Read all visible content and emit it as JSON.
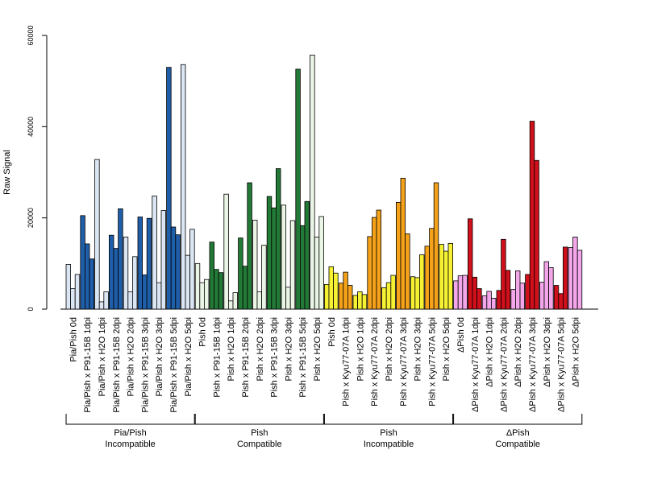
{
  "chart_data": {
    "type": "bar",
    "ylabel": "Raw Signal",
    "ylim": [
      0,
      60000
    ],
    "yticks": [
      0,
      20000,
      40000,
      60000
    ],
    "groups": [
      {
        "line1": "Pia/Pish",
        "line2": "Incompatible",
        "colors": {
          "light": "#dbe6f4",
          "dark": "#1f5ea8"
        },
        "categories": [
          {
            "label": "Pia/Pish 0d",
            "shade": "light",
            "values": [
              9800,
              4500,
              7600
            ]
          },
          {
            "label": "Pia/Pish x P91-15B 1dpi",
            "shade": "dark",
            "values": [
              20500,
              14300,
              11000
            ]
          },
          {
            "label": "Pia/Pish x H2O 1dpi",
            "shade": "light",
            "values": [
              32800,
              1600,
              3800
            ]
          },
          {
            "label": "Pia/Pish x P91-15B 2dpi",
            "shade": "dark",
            "values": [
              16200,
              13300,
              22000
            ]
          },
          {
            "label": "Pia/Pish x H2O 2dpi",
            "shade": "light",
            "values": [
              15800,
              3800,
              11500
            ]
          },
          {
            "label": "Pia/Pish x P91-15B 3dpi",
            "shade": "dark",
            "values": [
              20200,
              7500,
              19900
            ]
          },
          {
            "label": "Pia/Pish x H2O 3dpi",
            "shade": "light",
            "values": [
              24800,
              5800,
              21600
            ]
          },
          {
            "label": "Pia/Pish x P91-15B 5dpi",
            "shade": "dark",
            "values": [
              53000,
              18000,
              16300
            ]
          },
          {
            "label": "Pia/Pish x H2O 5dpi",
            "shade": "light",
            "values": [
              53600,
              11800,
              17500
            ]
          }
        ]
      },
      {
        "line1": "Pish",
        "line2": "Compatible",
        "colors": {
          "light": "#eaf5e6",
          "dark": "#237a37"
        },
        "categories": [
          {
            "label": "Pish 0d",
            "shade": "light",
            "values": [
              10000,
              5800,
              6500
            ]
          },
          {
            "label": "Pish x P91-15B 1dpi",
            "shade": "dark",
            "values": [
              14700,
              8700,
              8000
            ]
          },
          {
            "label": "Pish x H2O 1dpi",
            "shade": "light",
            "values": [
              25200,
              1800,
              3600
            ]
          },
          {
            "label": "Pish x P91-15B 2dpi",
            "shade": "dark",
            "values": [
              15600,
              9400,
              27700
            ]
          },
          {
            "label": "Pish x H2O 2dpi",
            "shade": "light",
            "values": [
              19500,
              3800,
              14000
            ]
          },
          {
            "label": "Pish x P91-15B 3dpi",
            "shade": "dark",
            "values": [
              24700,
              22200,
              30800
            ]
          },
          {
            "label": "Pish x H2O 3dpi",
            "shade": "light",
            "values": [
              22800,
              4800,
              19400
            ]
          },
          {
            "label": "Pish x P91-15B 5dpi",
            "shade": "dark",
            "values": [
              52600,
              18300,
              23600
            ]
          },
          {
            "label": "Pish x H2O 5dpi",
            "shade": "light",
            "values": [
              55700,
              15800,
              20300
            ]
          }
        ]
      },
      {
        "line1": "Pish",
        "line2": "Incompatible",
        "colors": {
          "light": "#f6f133",
          "dark": "#f5a21b"
        },
        "categories": [
          {
            "label": "Pish 0d",
            "shade": "light",
            "values": [
              5400,
              9300,
              7900
            ]
          },
          {
            "label": "Pish x Kyu77-07A 1dpi",
            "shade": "dark",
            "values": [
              5700,
              8100,
              5200
            ]
          },
          {
            "label": "Pish x H2O 1dpi",
            "shade": "light",
            "values": [
              3000,
              3800,
              3200
            ]
          },
          {
            "label": "Pish x Kyu77-07A 2dpi",
            "shade": "dark",
            "values": [
              15900,
              20100,
              21700
            ]
          },
          {
            "label": "Pish x H2O 2dpi",
            "shade": "light",
            "values": [
              4700,
              5800,
              7400
            ]
          },
          {
            "label": "Pish x Kyu77-07A 3dpi",
            "shade": "dark",
            "values": [
              23400,
              28700,
              16500
            ]
          },
          {
            "label": "Pish x H2O 3dpi",
            "shade": "light",
            "values": [
              7100,
              6900,
              11900
            ]
          },
          {
            "label": "Pish x Kyu77-07A 5dpi",
            "shade": "dark",
            "values": [
              13800,
              17700,
              27700
            ]
          },
          {
            "label": "Pish x H2O 5dpi",
            "shade": "light",
            "values": [
              14200,
              12700,
              14400
            ]
          }
        ]
      },
      {
        "line1": "ΔPish",
        "line2": "Compatible",
        "colors": {
          "light": "#f4a6ea",
          "dark": "#d0101b"
        },
        "categories": [
          {
            "label": "ΔPish 0d",
            "shade": "light",
            "values": [
              6200,
              7300,
              7400
            ]
          },
          {
            "label": "ΔPish x Kyu77-07A 1dpi",
            "shade": "dark",
            "values": [
              19800,
              7000,
              4500
            ]
          },
          {
            "label": "ΔPish x H2O 1dpi",
            "shade": "light",
            "values": [
              2900,
              3900,
              2400
            ]
          },
          {
            "label": "ΔPish x Kyu77-07A 2dpi",
            "shade": "dark",
            "values": [
              4100,
              15300,
              8500
            ]
          },
          {
            "label": "ΔPish x H2O 2dpi",
            "shade": "light",
            "values": [
              4300,
              8400,
              5700
            ]
          },
          {
            "label": "ΔPish x Kyu77-07A 3dpi",
            "shade": "dark",
            "values": [
              7600,
              41200,
              32600
            ]
          },
          {
            "label": "ΔPish x H2O 3dpi",
            "shade": "light",
            "values": [
              5900,
              10400,
              9100
            ]
          },
          {
            "label": "ΔPish x Kyu77-07A 5dpi",
            "shade": "dark",
            "values": [
              5200,
              3400,
              13600
            ]
          },
          {
            "label": "ΔPish x H2O 5dpi",
            "shade": "light",
            "values": [
              13500,
              15800,
              12900
            ]
          }
        ]
      }
    ]
  }
}
